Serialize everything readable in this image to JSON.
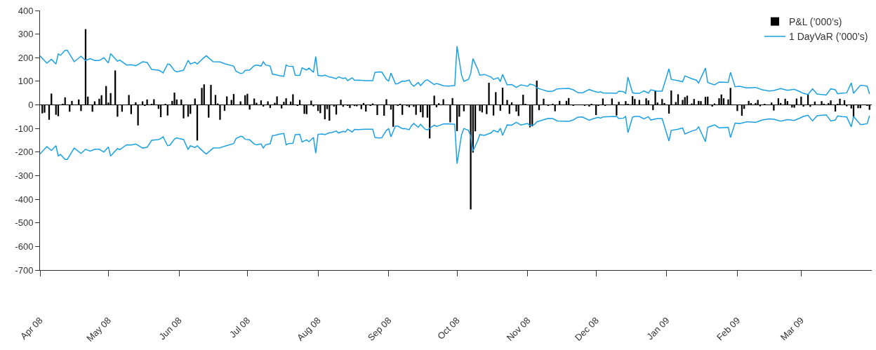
{
  "chart_data": {
    "type": "bar",
    "legend": "top right",
    "ylim": [
      -700,
      400
    ],
    "yticks": [
      -700,
      -600,
      -500,
      -400,
      -300,
      -200,
      -100,
      0,
      100,
      200,
      300,
      400
    ],
    "xlim": [
      "2008-04-01",
      "2009-04-01"
    ],
    "xticks": [
      {
        "value": "2008-04-01",
        "label": "Apr 08"
      },
      {
        "value": "2008-05-01",
        "label": "May 08"
      },
      {
        "value": "2008-06-01",
        "label": "Jun 08"
      },
      {
        "value": "2008-07-01",
        "label": "Jul 08"
      },
      {
        "value": "2008-08-01",
        "label": "Aug 08"
      },
      {
        "value": "2008-09-01",
        "label": "Sep 08"
      },
      {
        "value": "2008-10-01",
        "label": "Oct 08"
      },
      {
        "value": "2008-11-01",
        "label": "Nov 08"
      },
      {
        "value": "2008-12-01",
        "label": "Dec 08"
      },
      {
        "value": "2009-01-01",
        "label": "Jan 09"
      },
      {
        "value": "2009-02-01",
        "label": "Feb 09"
      },
      {
        "value": "2009-03-01",
        "label": "Mar 09"
      }
    ],
    "series": [
      {
        "name": "P&L (’000’s)",
        "color": "#000000",
        "x": [
          "2008-04-02",
          "2008-04-03",
          "2008-04-05",
          "2008-04-06",
          "2008-04-08",
          "2008-04-09",
          "2008-04-11",
          "2008-04-12",
          "2008-04-14",
          "2008-04-15",
          "2008-04-18",
          "2008-04-19",
          "2008-04-21",
          "2008-04-22",
          "2008-04-24",
          "2008-04-25",
          "2008-04-27",
          "2008-04-28",
          "2008-04-30",
          "2008-05-01",
          "2008-05-02",
          "2008-05-04",
          "2008-05-05",
          "2008-05-07",
          "2008-05-10",
          "2008-05-11",
          "2008-05-13",
          "2008-05-14",
          "2008-05-16",
          "2008-05-17",
          "2008-05-18",
          "2008-05-20",
          "2008-05-21",
          "2008-05-23",
          "2008-05-24",
          "2008-05-26",
          "2008-05-27",
          "2008-05-29",
          "2008-05-30",
          "2008-05-31",
          "2008-06-02",
          "2008-06-03",
          "2008-06-05",
          "2008-06-06",
          "2008-06-08",
          "2008-06-09",
          "2008-06-11",
          "2008-06-12",
          "2008-06-14",
          "2008-06-15",
          "2008-06-17",
          "2008-06-18",
          "2008-06-19",
          "2008-06-21",
          "2008-06-22",
          "2008-06-24",
          "2008-06-25",
          "2008-06-28",
          "2008-06-30",
          "2008-07-01",
          "2008-07-02",
          "2008-07-04",
          "2008-07-05",
          "2008-07-07",
          "2008-07-08",
          "2008-07-10",
          "2008-07-11",
          "2008-07-13",
          "2008-07-14",
          "2008-07-16",
          "2008-07-17",
          "2008-07-18",
          "2008-07-20",
          "2008-07-21",
          "2008-07-23",
          "2008-07-24",
          "2008-07-26",
          "2008-07-27",
          "2008-07-29",
          "2008-07-30",
          "2008-08-01",
          "2008-08-02",
          "2008-08-04",
          "2008-08-05",
          "2008-08-06",
          "2008-08-08",
          "2008-08-09",
          "2008-08-11",
          "2008-08-12",
          "2008-08-14",
          "2008-08-15",
          "2008-08-17",
          "2008-08-18",
          "2008-08-20",
          "2008-08-21",
          "2008-08-22",
          "2008-08-24",
          "2008-08-25",
          "2008-08-27",
          "2008-08-30",
          "2008-08-31",
          "2008-09-02",
          "2008-09-03",
          "2008-09-05",
          "2008-09-06",
          "2008-09-07",
          "2008-09-09",
          "2008-09-10",
          "2008-09-12",
          "2008-09-13",
          "2008-09-15",
          "2008-09-16",
          "2008-09-18",
          "2008-09-19",
          "2008-09-21",
          "2008-09-22",
          "2008-09-23",
          "2008-09-25",
          "2008-09-28",
          "2008-09-29",
          "2008-10-01",
          "2008-10-02",
          "2008-10-04",
          "2008-10-07",
          "2008-10-08",
          "2008-10-09",
          "2008-10-11",
          "2008-10-12",
          "2008-10-14",
          "2008-10-15",
          "2008-10-17",
          "2008-10-18",
          "2008-10-20",
          "2008-10-21",
          "2008-10-23",
          "2008-10-24",
          "2008-10-25",
          "2008-10-27",
          "2008-10-28",
          "2008-10-30",
          "2008-10-31",
          "2008-11-02",
          "2008-11-03",
          "2008-11-05",
          "2008-11-06",
          "2008-11-08",
          "2008-11-10",
          "2008-11-12",
          "2008-11-13",
          "2008-11-15",
          "2008-11-18",
          "2008-11-19",
          "2008-11-21",
          "2008-11-26",
          "2008-11-28",
          "2008-11-29",
          "2008-12-01",
          "2008-12-02",
          "2008-12-04",
          "2008-12-05",
          "2008-12-08",
          "2008-12-10",
          "2008-12-11",
          "2008-12-14",
          "2008-12-15",
          "2008-12-17",
          "2008-12-18",
          "2008-12-20",
          "2008-12-23",
          "2008-12-24",
          "2008-12-26",
          "2008-12-27",
          "2008-12-28",
          "2008-12-30",
          "2008-12-31",
          "2009-01-02",
          "2009-01-03",
          "2009-01-05",
          "2009-01-06",
          "2009-01-08",
          "2009-01-09",
          "2009-01-10",
          "2009-01-12",
          "2009-01-13",
          "2009-01-15",
          "2009-01-16",
          "2009-01-18",
          "2009-01-19",
          "2009-01-21",
          "2009-01-22",
          "2009-01-24",
          "2009-01-25",
          "2009-01-26",
          "2009-01-28",
          "2009-01-29",
          "2009-02-01",
          "2009-02-03",
          "2009-02-04",
          "2009-02-06",
          "2009-02-07",
          "2009-02-09",
          "2009-02-10",
          "2009-02-11",
          "2009-02-13",
          "2009-02-16",
          "2009-02-17",
          "2009-02-19",
          "2009-02-20",
          "2009-02-22",
          "2009-02-23",
          "2009-02-25",
          "2009-02-26",
          "2009-02-27",
          "2009-03-01",
          "2009-03-02",
          "2009-03-04",
          "2009-03-05",
          "2009-03-07",
          "2009-03-10",
          "2009-03-11",
          "2009-03-13",
          "2009-03-14",
          "2009-03-16",
          "2009-03-17",
          "2009-03-18",
          "2009-03-20",
          "2009-03-21",
          "2009-03-23",
          "2009-03-24",
          "2009-03-26",
          "2009-03-27",
          "2009-03-30",
          "2009-03-31"
        ],
        "values": [
          -36,
          -33,
          -63,
          48,
          -42,
          -48,
          5,
          32,
          -29,
          17,
          23,
          -26,
          321,
          35,
          -29,
          15,
          26,
          41,
          80,
          10,
          50,
          146,
          -50,
          -29,
          42,
          -39,
          11,
          -87,
          15,
          -3,
          23,
          4,
          24,
          -17,
          -52,
          2,
          -45,
          17,
          52,
          23,
          23,
          -57,
          -50,
          -38,
          27,
          -151,
          72,
          87,
          -54,
          85,
          42,
          6,
          -63,
          -25,
          36,
          21,
          46,
          15,
          41,
          47,
          -20,
          27,
          9,
          19,
          -7,
          15,
          -13,
          9,
          36,
          -15,
          13,
          28,
          14,
          45,
          -3,
          21,
          -38,
          -39,
          18,
          -6,
          -26,
          -35,
          -61,
          -18,
          -67,
          -7,
          -41,
          22,
          -8,
          -4,
          -13,
          -5,
          -6,
          -18,
          8,
          -28,
          -3,
          6,
          -43,
          -46,
          24,
          -20,
          -93,
          -2,
          2,
          -42,
          -5,
          -10,
          -8,
          -42,
          -31,
          -53,
          -54,
          -142,
          39,
          -10,
          7,
          24,
          -74,
          29,
          -111,
          -50,
          -27,
          -443,
          -202,
          -112,
          -26,
          -32,
          -39,
          94,
          -45,
          54,
          -25,
          73,
          21,
          -38,
          11,
          -28,
          -47,
          43,
          4,
          -95,
          -90,
          103,
          -22,
          26,
          -3,
          5,
          -27,
          17,
          17,
          29,
          -4,
          -4,
          -7,
          3,
          -43,
          -4,
          27,
          -4,
          27,
          -45,
          13,
          16,
          4,
          37,
          25,
          21,
          28,
          19,
          -22,
          59,
          10,
          25,
          8,
          -37,
          61,
          12,
          45,
          21,
          33,
          39,
          6,
          25,
          17,
          16,
          34,
          35,
          -7,
          6,
          28,
          44,
          28,
          23,
          72,
          -26,
          -46,
          -17,
          17,
          8,
          8,
          21,
          -6,
          3,
          10,
          -24,
          28,
          8,
          26,
          16,
          -11,
          -12,
          27,
          35,
          -7,
          44,
          -8,
          14,
          16,
          5,
          8,
          19,
          -28,
          4,
          26,
          20,
          -6,
          -15,
          -50,
          -14,
          -14,
          -3,
          -21
        ]
      },
      {
        "name": "1 DayVaR (’000’s)",
        "color": "#1ba1e2",
        "type": "line",
        "values": [
          208,
          177,
          193,
          173,
          216,
          210,
          231,
          231,
          183,
          206,
          188,
          196,
          188,
          188,
          200,
          178,
          217,
          185,
          190,
          169,
          170,
          166,
          171,
          183,
          180,
          150,
          147,
          143,
          135,
          173,
          171,
          145,
          140,
          147,
          189,
          173,
          181,
          173,
          183,
          201,
          208,
          183,
          182,
          175,
          164,
          143,
          133,
          135,
          146,
          148,
          166,
          169,
          165,
          183,
          169,
          165,
          130,
          129,
          124,
          121,
          169,
          164,
          163,
          126,
          125,
          157,
          148,
          156,
          138,
          205,
          125,
          123,
          126,
          118,
          117,
          111,
          119,
          112,
          115,
          103,
          115,
          104,
          105,
          104,
          103,
          103,
          138,
          140,
          139,
          108,
          101,
          135,
          89,
          90,
          101,
          100,
          105,
          88,
          79,
          95,
          82,
          103,
          106,
          86,
          91,
          88,
          81,
          80,
          82,
          249,
          126,
          100,
          108,
          133,
          196,
          153,
          126,
          129,
          118,
          108,
          115,
          99,
          129,
          85,
          86,
          74,
          85,
          83,
          79,
          88,
          83,
          72,
          66,
          57,
          58,
          68,
          69,
          70,
          64,
          52,
          51,
          65,
          58,
          53,
          56,
          51,
          50,
          49,
          58,
          56,
          49,
          118,
          52,
          49,
          49,
          59,
          50,
          64,
          58,
          58,
          153,
          108,
          103,
          98,
          123,
          111,
          105,
          93,
          156,
          95,
          85,
          97,
          95,
          138,
          77,
          79,
          72,
          72,
          74,
          64,
          59,
          61,
          69,
          62,
          66,
          58,
          49,
          44,
          68,
          46,
          42,
          68,
          64,
          47,
          50,
          51,
          93,
          49,
          83,
          83,
          79,
          46
        ]
      },
      {
        "color": "#1ba1e2",
        "type": "line",
        "values": [
          -208,
          -177,
          -193,
          -173,
          -216,
          -210,
          -231,
          -231,
          -183,
          -206,
          -188,
          -196,
          -188,
          -188,
          -200,
          -178,
          -217,
          -185,
          -190,
          -169,
          -170,
          -166,
          -171,
          -183,
          -180,
          -150,
          -147,
          -143,
          -135,
          -173,
          -171,
          -145,
          -140,
          -147,
          -189,
          -173,
          -181,
          -173,
          -183,
          -201,
          -208,
          -183,
          -182,
          -175,
          -164,
          -143,
          -133,
          -135,
          -146,
          -148,
          -166,
          -169,
          -165,
          -183,
          -169,
          -165,
          -130,
          -129,
          -124,
          -121,
          -169,
          -164,
          -163,
          -126,
          -125,
          -157,
          -148,
          -156,
          -138,
          -205,
          -125,
          -123,
          -126,
          -118,
          -117,
          -111,
          -119,
          -112,
          -115,
          -103,
          -115,
          -104,
          -105,
          -104,
          -103,
          -103,
          -138,
          -140,
          -139,
          -108,
          -101,
          -135,
          -89,
          -90,
          -101,
          -100,
          -105,
          -88,
          -79,
          -95,
          -82,
          -103,
          -106,
          -86,
          -91,
          -88,
          -81,
          -80,
          -82,
          -249,
          -126,
          -100,
          -108,
          -133,
          -196,
          -153,
          -126,
          -129,
          -118,
          -108,
          -115,
          -99,
          -129,
          -85,
          -86,
          -74,
          -85,
          -83,
          -79,
          -88,
          -83,
          -72,
          -66,
          -57,
          -58,
          -68,
          -69,
          -70,
          -64,
          -52,
          -51,
          -65,
          -58,
          -53,
          -56,
          -51,
          -50,
          -49,
          -58,
          -56,
          -49,
          -118,
          -52,
          -49,
          -49,
          -59,
          -50,
          -64,
          -58,
          -58,
          -153,
          -108,
          -103,
          -98,
          -123,
          -111,
          -105,
          -93,
          -156,
          -95,
          -85,
          -97,
          -95,
          -138,
          -77,
          -79,
          -72,
          -72,
          -74,
          -64,
          -59,
          -61,
          -69,
          -62,
          -66,
          -58,
          -49,
          -44,
          -68,
          -46,
          -42,
          -68,
          -64,
          -47,
          -50,
          -51,
          -93,
          -49,
          -83,
          -83,
          -79,
          -46
        ]
      }
    ],
    "x": [
      "2008-04-01",
      "2008-04-04",
      "2008-04-06",
      "2008-04-08",
      "2008-04-09",
      "2008-04-10",
      "2008-04-12",
      "2008-04-13",
      "2008-04-16",
      "2008-04-19",
      "2008-04-21",
      "2008-04-23",
      "2008-04-25",
      "2008-04-27",
      "2008-04-29",
      "2008-05-01",
      "2008-05-02",
      "2008-05-05",
      "2008-05-06",
      "2008-05-09",
      "2008-05-11",
      "2008-05-13",
      "2008-05-14",
      "2008-05-16",
      "2008-05-18",
      "2008-05-20",
      "2008-05-23",
      "2008-05-24",
      "2008-05-25",
      "2008-05-27",
      "2008-05-28",
      "2008-05-30",
      "2008-05-31",
      "2008-06-03",
      "2008-06-05",
      "2008-06-06",
      "2008-06-08",
      "2008-06-09",
      "2008-06-10",
      "2008-06-12",
      "2008-06-13",
      "2008-06-16",
      "2008-06-19",
      "2008-06-21",
      "2008-06-25",
      "2008-06-26",
      "2008-06-28",
      "2008-06-29",
      "2008-06-30",
      "2008-07-02",
      "2008-07-04",
      "2008-07-05",
      "2008-07-07",
      "2008-07-08",
      "2008-07-09",
      "2008-07-11",
      "2008-07-12",
      "2008-07-13",
      "2008-07-15",
      "2008-07-17",
      "2008-07-18",
      "2008-07-19",
      "2008-07-21",
      "2008-07-22",
      "2008-07-24",
      "2008-07-25",
      "2008-07-27",
      "2008-07-28",
      "2008-07-30",
      "2008-07-31",
      "2008-08-01",
      "2008-08-03",
      "2008-08-04",
      "2008-08-06",
      "2008-08-07",
      "2008-08-09",
      "2008-08-10",
      "2008-08-12",
      "2008-08-13",
      "2008-08-14",
      "2008-08-16",
      "2008-08-17",
      "2008-08-19",
      "2008-08-20",
      "2008-08-22",
      "2008-08-25",
      "2008-08-26",
      "2008-08-28",
      "2008-08-29",
      "2008-08-31",
      "2008-09-01",
      "2008-09-02",
      "2008-09-04",
      "2008-09-05",
      "2008-09-07",
      "2008-09-08",
      "2008-09-10",
      "2008-09-11",
      "2008-09-12",
      "2008-09-14",
      "2008-09-15",
      "2008-09-17",
      "2008-09-18",
      "2008-09-21",
      "2008-09-22",
      "2008-09-23",
      "2008-09-25",
      "2008-09-27",
      "2008-09-30",
      "2008-10-01",
      "2008-10-03",
      "2008-10-04",
      "2008-10-06",
      "2008-10-07",
      "2008-10-08",
      "2008-10-10",
      "2008-10-11",
      "2008-10-13",
      "2008-10-16",
      "2008-10-17",
      "2008-10-19",
      "2008-10-20",
      "2008-10-21",
      "2008-10-23",
      "2008-10-25",
      "2008-10-27",
      "2008-10-29",
      "2008-10-30",
      "2008-11-01",
      "2008-11-02",
      "2008-11-04",
      "2008-11-05",
      "2008-11-07",
      "2008-11-10",
      "2008-11-12",
      "2008-11-14",
      "2008-11-17",
      "2008-11-19",
      "2008-11-21",
      "2008-11-23",
      "2008-11-25",
      "2008-11-28",
      "2008-11-30",
      "2008-12-02",
      "2008-12-03",
      "2008-12-04",
      "2008-12-07",
      "2008-12-10",
      "2008-12-11",
      "2008-12-13",
      "2008-12-14",
      "2008-12-15",
      "2008-12-17",
      "2008-12-18",
      "2008-12-20",
      "2008-12-22",
      "2008-12-24",
      "2008-12-25",
      "2008-12-28",
      "2008-12-30",
      "2009-01-02",
      "2009-01-03",
      "2009-01-06",
      "2009-01-08",
      "2009-01-09",
      "2009-01-12",
      "2009-01-14",
      "2009-01-15",
      "2009-01-18",
      "2009-01-19",
      "2009-01-22",
      "2009-01-24",
      "2009-01-28",
      "2009-01-29",
      "2009-01-31",
      "2009-02-02",
      "2009-02-05",
      "2009-02-06",
      "2009-02-09",
      "2009-02-12",
      "2009-02-15",
      "2009-02-17",
      "2009-02-20",
      "2009-02-23",
      "2009-02-26",
      "2009-02-28",
      "2009-03-02",
      "2009-03-04",
      "2009-03-06",
      "2009-03-08",
      "2009-03-12",
      "2009-03-14",
      "2009-03-16",
      "2009-03-17",
      "2009-03-19",
      "2009-03-21",
      "2009-03-23",
      "2009-03-24",
      "2009-03-27",
      "2009-03-28",
      "2009-03-30",
      "2009-03-31"
    ]
  }
}
